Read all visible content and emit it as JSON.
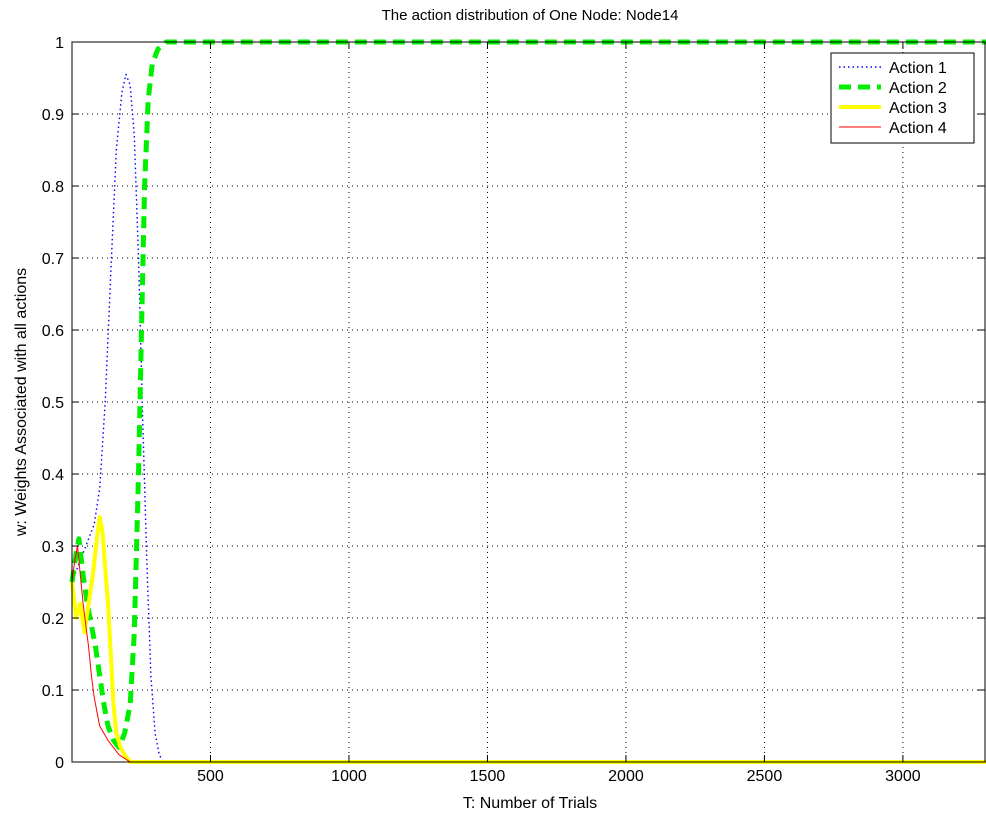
{
  "chart_data": {
    "type": "line",
    "title": "The action distribution of One Node: Node14",
    "xlabel": "T: Number of Trials",
    "ylabel": "w: Weights Associated with all actions",
    "xlim": [
      0,
      3300
    ],
    "ylim": [
      0,
      1
    ],
    "x_ticks": [
      500,
      1000,
      1500,
      2000,
      2500,
      3000
    ],
    "x_tick_labels": [
      "500",
      "1000",
      "1500",
      "2000",
      "2500",
      "3000"
    ],
    "y_ticks": [
      0,
      0.1,
      0.2,
      0.3,
      0.4,
      0.5,
      0.6,
      0.7,
      0.8,
      0.9,
      1
    ],
    "y_tick_labels": [
      "0",
      "0.1",
      "0.2",
      "0.3",
      "0.4",
      "0.5",
      "0.6",
      "0.7",
      "0.8",
      "0.9",
      "1"
    ],
    "grid": true,
    "legend_position": "top-right",
    "series": [
      {
        "name": "Action 1",
        "color": "#0000ff",
        "style": "dotted",
        "points": [
          [
            0,
            0.25
          ],
          [
            20,
            0.27
          ],
          [
            40,
            0.29
          ],
          [
            60,
            0.31
          ],
          [
            80,
            0.33
          ],
          [
            100,
            0.38
          ],
          [
            120,
            0.5
          ],
          [
            140,
            0.68
          ],
          [
            160,
            0.85
          ],
          [
            180,
            0.93
          ],
          [
            195,
            0.955
          ],
          [
            210,
            0.94
          ],
          [
            225,
            0.87
          ],
          [
            240,
            0.7
          ],
          [
            255,
            0.48
          ],
          [
            270,
            0.28
          ],
          [
            285,
            0.12
          ],
          [
            300,
            0.04
          ],
          [
            315,
            0.01
          ],
          [
            330,
            0.0
          ],
          [
            3300,
            0.0
          ]
        ]
      },
      {
        "name": "Action 2",
        "color": "#00ee00",
        "style": "dashed",
        "points": [
          [
            0,
            0.25
          ],
          [
            15,
            0.29
          ],
          [
            25,
            0.31
          ],
          [
            40,
            0.26
          ],
          [
            55,
            0.22
          ],
          [
            70,
            0.19
          ],
          [
            85,
            0.16
          ],
          [
            100,
            0.12
          ],
          [
            115,
            0.08
          ],
          [
            130,
            0.05
          ],
          [
            150,
            0.03
          ],
          [
            170,
            0.02
          ],
          [
            190,
            0.04
          ],
          [
            210,
            0.08
          ],
          [
            225,
            0.18
          ],
          [
            240,
            0.4
          ],
          [
            252,
            0.62
          ],
          [
            262,
            0.8
          ],
          [
            275,
            0.92
          ],
          [
            290,
            0.97
          ],
          [
            310,
            0.99
          ],
          [
            340,
            1.0
          ],
          [
            3300,
            1.0
          ]
        ]
      },
      {
        "name": "Action 3",
        "color": "#ffff00",
        "style": "solid",
        "points": [
          [
            0,
            0.25
          ],
          [
            15,
            0.2
          ],
          [
            30,
            0.22
          ],
          [
            45,
            0.18
          ],
          [
            60,
            0.22
          ],
          [
            75,
            0.26
          ],
          [
            90,
            0.31
          ],
          [
            100,
            0.34
          ],
          [
            110,
            0.32
          ],
          [
            120,
            0.27
          ],
          [
            130,
            0.22
          ],
          [
            140,
            0.15
          ],
          [
            150,
            0.08
          ],
          [
            160,
            0.04
          ],
          [
            175,
            0.02
          ],
          [
            190,
            0.01
          ],
          [
            210,
            0.0
          ],
          [
            3300,
            0.0
          ]
        ]
      },
      {
        "name": "Action 4",
        "color": "#ff0000",
        "style": "solid",
        "points": [
          [
            0,
            0.25
          ],
          [
            10,
            0.28
          ],
          [
            20,
            0.3
          ],
          [
            30,
            0.26
          ],
          [
            40,
            0.22
          ],
          [
            50,
            0.19
          ],
          [
            60,
            0.16
          ],
          [
            70,
            0.12
          ],
          [
            80,
            0.09
          ],
          [
            90,
            0.07
          ],
          [
            100,
            0.05
          ],
          [
            115,
            0.04
          ],
          [
            130,
            0.03
          ],
          [
            150,
            0.02
          ],
          [
            170,
            0.01
          ],
          [
            190,
            0.005
          ],
          [
            210,
            0.0
          ],
          [
            3300,
            0.0
          ]
        ]
      }
    ]
  }
}
